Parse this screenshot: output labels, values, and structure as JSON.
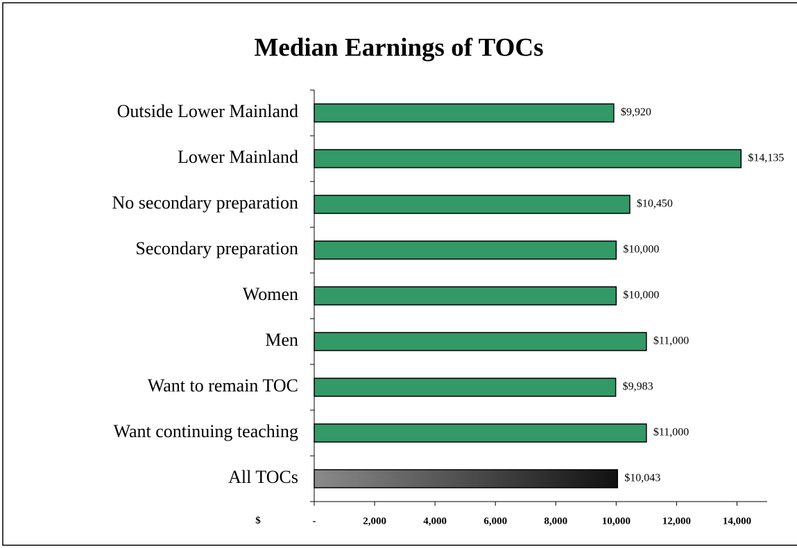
{
  "chart_data": {
    "type": "bar",
    "orientation": "horizontal",
    "title": "Median Earnings of TOCs",
    "x_label": "$",
    "categories": [
      "Outside Lower Mainland",
      "Lower Mainland",
      "No secondary preparation",
      "Secondary preparation",
      "Women",
      "Men",
      "Want to remain TOC",
      "Want continuing teaching",
      "All TOCs"
    ],
    "values": [
      9920,
      14135,
      10450,
      10000,
      10000,
      11000,
      9983,
      11000,
      10043
    ],
    "value_labels": [
      "$9,920",
      "$14,135",
      "$10,450",
      "$10,000",
      "$10,000",
      "$11,000",
      "$9,983",
      "$11,000",
      "$10,043"
    ],
    "colors": [
      "#339966",
      "#339966",
      "#339966",
      "#339966",
      "#339966",
      "#339966",
      "#339966",
      "#339966",
      "#111111"
    ],
    "xlim": [
      0,
      15000
    ],
    "xticks": [
      {
        "value": 0,
        "label": "-"
      },
      {
        "value": 2000,
        "label": "2,000"
      },
      {
        "value": 4000,
        "label": "4,000"
      },
      {
        "value": 6000,
        "label": "6,000"
      },
      {
        "value": 8000,
        "label": "8,000"
      },
      {
        "value": 10000,
        "label": "10,000"
      },
      {
        "value": 12000,
        "label": "12,000"
      },
      {
        "value": 14000,
        "label": "14,000"
      }
    ],
    "grid": false
  }
}
